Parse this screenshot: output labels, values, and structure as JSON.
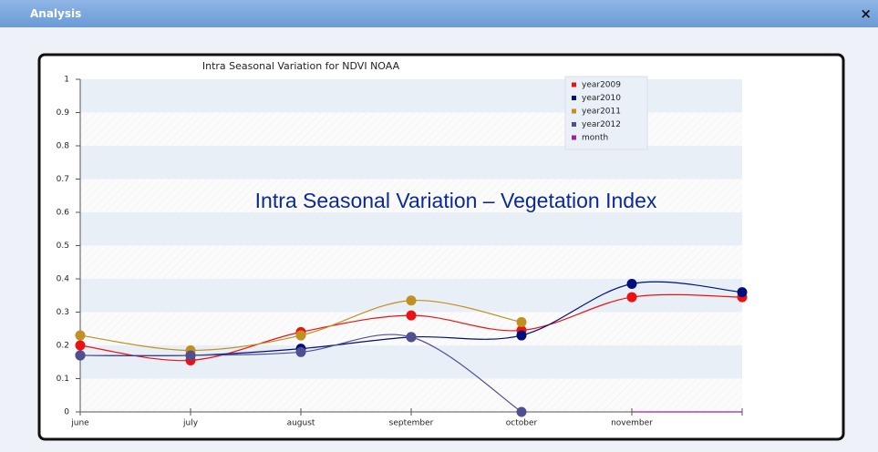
{
  "dialog": {
    "title": "Analysis",
    "close": "×"
  },
  "chart_data": {
    "type": "line",
    "title": "Intra Seasonal Variation for NDVI NOAA",
    "annotation": "Intra Seasonal Variation – Vegetation Index",
    "categories": [
      "june",
      "july",
      "august",
      "september",
      "october",
      "november",
      null
    ],
    "series": [
      {
        "name": "year2009",
        "color": "#ee1111",
        "values": [
          0.2,
          0.155,
          0.24,
          0.29,
          0.245,
          0.345,
          0.345
        ]
      },
      {
        "name": "year2010",
        "color": "#000f80",
        "values": [
          0.17,
          0.17,
          0.19,
          0.225,
          0.23,
          0.385,
          0.36
        ]
      },
      {
        "name": "year2011",
        "color": "#c09020",
        "values": [
          0.23,
          0.185,
          0.23,
          0.335,
          0.27,
          null,
          null
        ]
      },
      {
        "name": "year2012",
        "color": "#505090",
        "values": [
          0.17,
          0.17,
          0.18,
          0.225,
          0,
          null,
          null
        ]
      },
      {
        "name": "month",
        "color": "#a020a0",
        "values": [
          null,
          null,
          null,
          null,
          null,
          0,
          0
        ],
        "markers": false
      }
    ],
    "ylim": [
      0,
      1
    ],
    "yticks": [
      0,
      0.1,
      0.2,
      0.3,
      0.4,
      0.5,
      0.6,
      0.7,
      0.8,
      0.9,
      1
    ],
    "grid": true
  }
}
